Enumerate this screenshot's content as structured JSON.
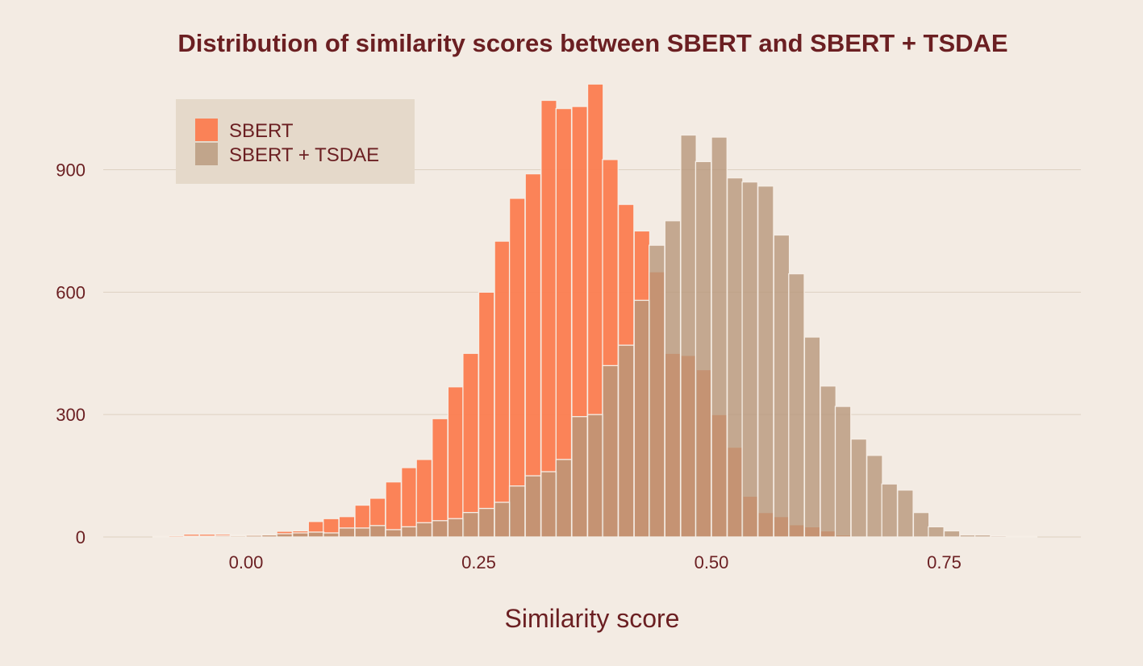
{
  "chart_data": {
    "type": "bar",
    "subtype": "overlapping-histogram",
    "title": "Distribution of similarity scores between SBERT and SBERT + TSDAE",
    "xlabel": "Similarity score",
    "ylabel": "",
    "xlim": [
      -0.125,
      0.9
    ],
    "ylim": [
      0,
      1150
    ],
    "bin_width": 0.0167,
    "x_ticks": [
      0.0,
      0.25,
      0.5,
      0.75
    ],
    "x_tick_labels": [
      "0.00",
      "0.25",
      "0.50",
      "0.75"
    ],
    "y_ticks": [
      0,
      300,
      600,
      900
    ],
    "y_tick_labels": [
      "0",
      "300",
      "600",
      "900"
    ],
    "grid": "horizontal",
    "legend_placement": "top-left",
    "colors": {
      "background": "#f3ebe3",
      "text": "#6b1f22",
      "grid": "#ddd1c2",
      "bar_edge": "#f6eee6",
      "legend_bg": "#e5d9ca"
    },
    "series": [
      {
        "name": "SBERT",
        "color": "#fb7d50",
        "bin_starts": [
          -0.1,
          -0.083,
          -0.067,
          -0.05,
          -0.033,
          -0.017,
          0.0,
          0.017,
          0.033,
          0.05,
          0.067,
          0.083,
          0.1,
          0.117,
          0.133,
          0.15,
          0.167,
          0.183,
          0.2,
          0.217,
          0.233,
          0.25,
          0.267,
          0.283,
          0.3,
          0.317,
          0.333,
          0.35,
          0.367,
          0.383,
          0.4,
          0.417,
          0.433,
          0.45,
          0.467,
          0.483,
          0.5,
          0.517,
          0.533,
          0.55,
          0.567,
          0.583,
          0.6,
          0.617,
          0.633,
          0.65
        ],
        "values": [
          1,
          3,
          7,
          7,
          7,
          5,
          6,
          7,
          14,
          15,
          38,
          45,
          50,
          78,
          95,
          135,
          170,
          190,
          290,
          368,
          450,
          600,
          725,
          830,
          890,
          1070,
          1050,
          1055,
          1110,
          925,
          815,
          750,
          650,
          450,
          445,
          410,
          300,
          220,
          100,
          60,
          50,
          30,
          25,
          15,
          5,
          2
        ]
      },
      {
        "name": "SBERT + TSDAE",
        "color": "#b8977a",
        "bin_starts": [
          -0.1,
          -0.083,
          -0.067,
          -0.05,
          -0.033,
          -0.017,
          0.0,
          0.017,
          0.033,
          0.05,
          0.067,
          0.083,
          0.1,
          0.117,
          0.133,
          0.15,
          0.167,
          0.183,
          0.2,
          0.217,
          0.233,
          0.25,
          0.267,
          0.283,
          0.3,
          0.317,
          0.333,
          0.35,
          0.367,
          0.383,
          0.4,
          0.417,
          0.433,
          0.45,
          0.467,
          0.483,
          0.5,
          0.517,
          0.533,
          0.55,
          0.567,
          0.583,
          0.6,
          0.617,
          0.633,
          0.65,
          0.667,
          0.683,
          0.7,
          0.717,
          0.733,
          0.75,
          0.767,
          0.783,
          0.8,
          0.817,
          0.833
        ],
        "values": [
          0,
          0,
          2,
          2,
          3,
          3,
          4,
          5,
          8,
          10,
          12,
          10,
          22,
          22,
          28,
          18,
          25,
          35,
          40,
          45,
          60,
          70,
          85,
          125,
          150,
          160,
          190,
          295,
          300,
          420,
          470,
          580,
          715,
          775,
          985,
          920,
          980,
          880,
          870,
          860,
          740,
          645,
          490,
          370,
          320,
          240,
          200,
          130,
          115,
          60,
          25,
          15,
          5,
          5,
          3,
          2,
          1
        ]
      }
    ]
  }
}
